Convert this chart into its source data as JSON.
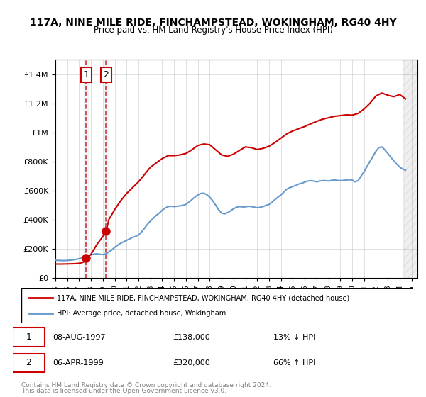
{
  "title1": "117A, NINE MILE RIDE, FINCHAMPSTEAD, WOKINGHAM, RG40 4HY",
  "title2": "Price paid vs. HM Land Registry's House Price Index (HPI)",
  "legend_line1": "117A, NINE MILE RIDE, FINCHAMPSTEAD, WOKINGHAM, RG40 4HY (detached house)",
  "legend_line2": "HPI: Average price, detached house, Wokingham",
  "transaction1": {
    "label": "1",
    "date": "08-AUG-1997",
    "price": 138000,
    "hpi_pct": "13%",
    "hpi_dir": "↓",
    "year": 1997.6
  },
  "transaction2": {
    "label": "2",
    "date": "06-APR-1999",
    "price": 320000,
    "hpi_pct": "66%",
    "hpi_dir": "↑",
    "year": 1999.27
  },
  "ylim": [
    0,
    1500000
  ],
  "xlim_start": 1995.0,
  "xlim_end": 2025.5,
  "property_color": "#cc0000",
  "hpi_color": "#6699cc",
  "footer1": "Contains HM Land Registry data © Crown copyright and database right 2024.",
  "footer2": "This data is licensed under the Open Government Licence v3.0.",
  "hpi_data": {
    "years": [
      1995.0,
      1995.25,
      1995.5,
      1995.75,
      1996.0,
      1996.25,
      1996.5,
      1996.75,
      1997.0,
      1997.25,
      1997.5,
      1997.75,
      1998.0,
      1998.25,
      1998.5,
      1998.75,
      1999.0,
      1999.25,
      1999.5,
      1999.75,
      2000.0,
      2000.25,
      2000.5,
      2000.75,
      2001.0,
      2001.25,
      2001.5,
      2001.75,
      2002.0,
      2002.25,
      2002.5,
      2002.75,
      2003.0,
      2003.25,
      2003.5,
      2003.75,
      2004.0,
      2004.25,
      2004.5,
      2004.75,
      2005.0,
      2005.25,
      2005.5,
      2005.75,
      2006.0,
      2006.25,
      2006.5,
      2006.75,
      2007.0,
      2007.25,
      2007.5,
      2007.75,
      2008.0,
      2008.25,
      2008.5,
      2008.75,
      2009.0,
      2009.25,
      2009.5,
      2009.75,
      2010.0,
      2010.25,
      2010.5,
      2010.75,
      2011.0,
      2011.25,
      2011.5,
      2011.75,
      2012.0,
      2012.25,
      2012.5,
      2012.75,
      2013.0,
      2013.25,
      2013.5,
      2013.75,
      2014.0,
      2014.25,
      2014.5,
      2014.75,
      2015.0,
      2015.25,
      2015.5,
      2015.75,
      2016.0,
      2016.25,
      2016.5,
      2016.75,
      2017.0,
      2017.25,
      2017.5,
      2017.75,
      2018.0,
      2018.25,
      2018.5,
      2018.75,
      2019.0,
      2019.25,
      2019.5,
      2019.75,
      2020.0,
      2020.25,
      2020.5,
      2020.75,
      2021.0,
      2021.25,
      2021.5,
      2021.75,
      2022.0,
      2022.25,
      2022.5,
      2022.75,
      2023.0,
      2023.25,
      2023.5,
      2023.75,
      2024.0,
      2024.25,
      2024.5
    ],
    "values": [
      121000,
      120000,
      119500,
      119000,
      120000,
      121500,
      124000,
      127000,
      132000,
      137000,
      143000,
      150000,
      158000,
      163000,
      165000,
      162000,
      160000,
      165000,
      178000,
      192000,
      210000,
      225000,
      238000,
      248000,
      258000,
      268000,
      278000,
      285000,
      295000,
      315000,
      340000,
      368000,
      390000,
      410000,
      430000,
      445000,
      465000,
      480000,
      490000,
      492000,
      490000,
      492000,
      495000,
      498000,
      505000,
      520000,
      538000,
      555000,
      570000,
      580000,
      582000,
      572000,
      555000,
      530000,
      500000,
      468000,
      445000,
      440000,
      448000,
      460000,
      475000,
      485000,
      490000,
      488000,
      488000,
      492000,
      490000,
      486000,
      482000,
      485000,
      490000,
      498000,
      505000,
      520000,
      538000,
      555000,
      570000,
      590000,
      610000,
      620000,
      628000,
      635000,
      645000,
      650000,
      658000,
      665000,
      668000,
      665000,
      660000,
      665000,
      668000,
      668000,
      665000,
      670000,
      672000,
      670000,
      668000,
      670000,
      672000,
      675000,
      672000,
      660000,
      668000,
      700000,
      730000,
      765000,
      800000,
      835000,
      870000,
      895000,
      900000,
      880000,
      855000,
      830000,
      805000,
      782000,
      762000,
      748000,
      740000
    ]
  },
  "property_data": {
    "years": [
      1995.0,
      1995.5,
      1996.0,
      1996.5,
      1997.0,
      1997.25,
      1997.5,
      1997.6,
      1997.75,
      1998.0,
      1998.5,
      1999.0,
      1999.27,
      1999.5,
      2000.0,
      2000.5,
      2001.0,
      2001.5,
      2002.0,
      2002.5,
      2003.0,
      2003.5,
      2004.0,
      2004.5,
      2005.0,
      2005.5,
      2006.0,
      2006.5,
      2007.0,
      2007.5,
      2008.0,
      2008.5,
      2009.0,
      2009.5,
      2010.0,
      2010.5,
      2011.0,
      2011.5,
      2012.0,
      2012.5,
      2013.0,
      2013.5,
      2014.0,
      2014.5,
      2015.0,
      2015.5,
      2016.0,
      2016.5,
      2017.0,
      2017.5,
      2018.0,
      2018.5,
      2019.0,
      2019.5,
      2020.0,
      2020.5,
      2021.0,
      2021.5,
      2022.0,
      2022.5,
      2023.0,
      2023.5,
      2024.0,
      2024.5
    ],
    "values": [
      95000,
      95000,
      96000,
      97000,
      100000,
      105000,
      112000,
      138000,
      145000,
      162000,
      230000,
      285000,
      320000,
      400000,
      470000,
      530000,
      580000,
      620000,
      660000,
      710000,
      760000,
      790000,
      820000,
      840000,
      840000,
      845000,
      855000,
      880000,
      910000,
      920000,
      915000,
      880000,
      845000,
      835000,
      850000,
      875000,
      900000,
      895000,
      882000,
      890000,
      905000,
      930000,
      960000,
      990000,
      1010000,
      1025000,
      1040000,
      1058000,
      1075000,
      1090000,
      1100000,
      1110000,
      1115000,
      1120000,
      1118000,
      1130000,
      1160000,
      1200000,
      1250000,
      1270000,
      1255000,
      1245000,
      1260000,
      1230000
    ]
  }
}
